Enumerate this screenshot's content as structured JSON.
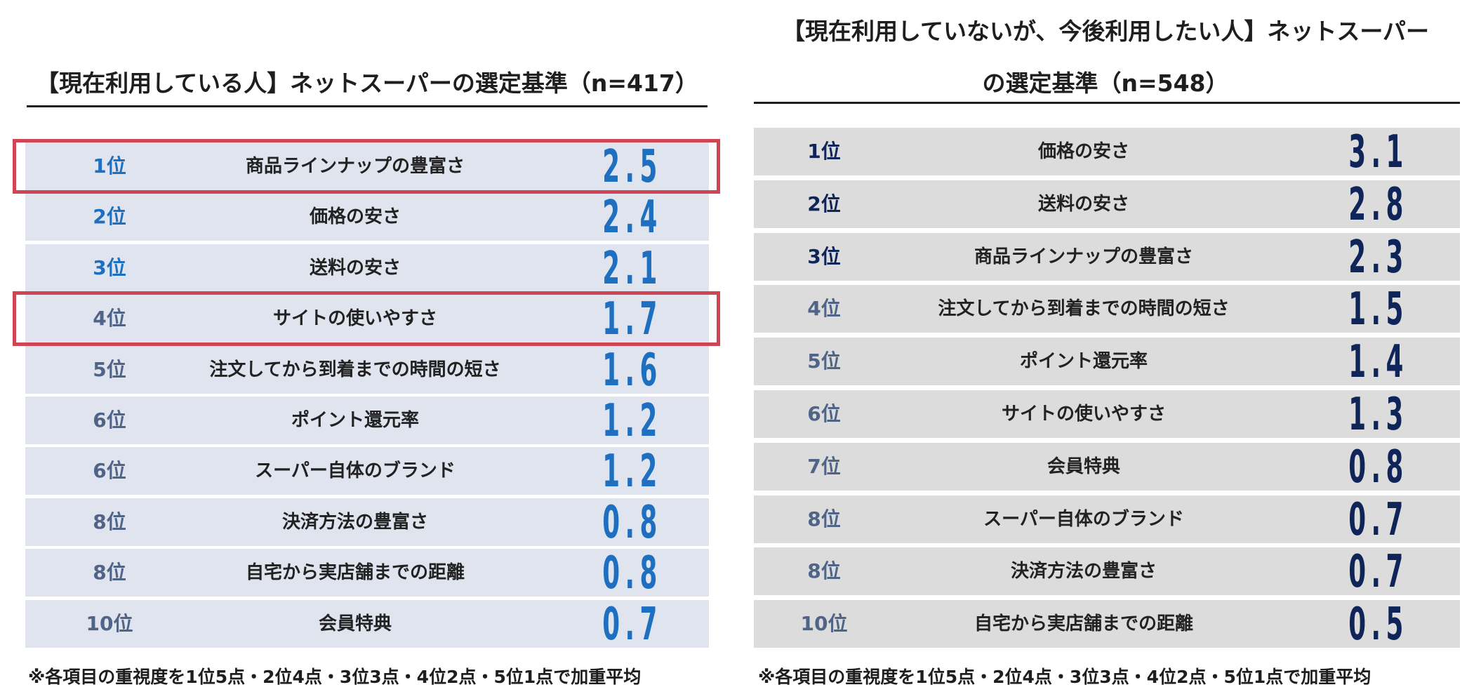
{
  "colors": {
    "left_row_bg": "#dfe4ee",
    "right_row_bg": "#dcdcdc",
    "left_value": "#1f6fc1",
    "left_rank_top": "#1f6fc1",
    "left_rank_other": "#4f6486",
    "right_value": "#0f2458",
    "right_rank_top": "#0f2458",
    "right_rank_other": "#4f6486",
    "highlight": "#d04553"
  },
  "chart_data": [
    {
      "type": "table",
      "title": "【現在利用している人】ネットスーパーの選定基準（n=417）",
      "note": "※各項目の重視度を1位5点・2位4点・3位3点・4位2点・5位1点で加重平均",
      "highlighted_ranks_index": [
        0,
        3
      ],
      "rows": [
        {
          "rank": "1位",
          "label": "商品ラインナップの豊富さ",
          "value": "2.5"
        },
        {
          "rank": "2位",
          "label": "価格の安さ",
          "value": "2.4"
        },
        {
          "rank": "3位",
          "label": "送料の安さ",
          "value": "2.1"
        },
        {
          "rank": "4位",
          "label": "サイトの使いやすさ",
          "value": "1.7"
        },
        {
          "rank": "5位",
          "label": "注文してから到着までの時間の短さ",
          "value": "1.6"
        },
        {
          "rank": "6位",
          "label": "ポイント還元率",
          "value": "1.2"
        },
        {
          "rank": "6位",
          "label": "スーパー自体のブランド",
          "value": "1.2"
        },
        {
          "rank": "8位",
          "label": "決済方法の豊富さ",
          "value": "0.8"
        },
        {
          "rank": "8位",
          "label": "自宅から実店舗までの距離",
          "value": "0.8"
        },
        {
          "rank": "10位",
          "label": "会員特典",
          "value": "0.7"
        }
      ]
    },
    {
      "type": "table",
      "title_line1": "【現在利用していないが、今後利用したい人】ネットスーパー",
      "title_line2": "の選定基準（n=548）",
      "note": "※各項目の重視度を1位5点・2位4点・3位3点・4位2点・5位1点で加重平均",
      "rows": [
        {
          "rank": "1位",
          "label": "価格の安さ",
          "value": "3.1"
        },
        {
          "rank": "2位",
          "label": "送料の安さ",
          "value": "2.8"
        },
        {
          "rank": "3位",
          "label": "商品ラインナップの豊富さ",
          "value": "2.3"
        },
        {
          "rank": "4位",
          "label": "注文してから到着までの時間の短さ",
          "value": "1.5"
        },
        {
          "rank": "5位",
          "label": "ポイント還元率",
          "value": "1.4"
        },
        {
          "rank": "6位",
          "label": "サイトの使いやすさ",
          "value": "1.3"
        },
        {
          "rank": "7位",
          "label": "会員特典",
          "value": "0.8"
        },
        {
          "rank": "8位",
          "label": "スーパー自体のブランド",
          "value": "0.7"
        },
        {
          "rank": "8位",
          "label": "決済方法の豊富さ",
          "value": "0.7"
        },
        {
          "rank": "10位",
          "label": "自宅から実店舗までの距離",
          "value": "0.5"
        }
      ]
    }
  ]
}
